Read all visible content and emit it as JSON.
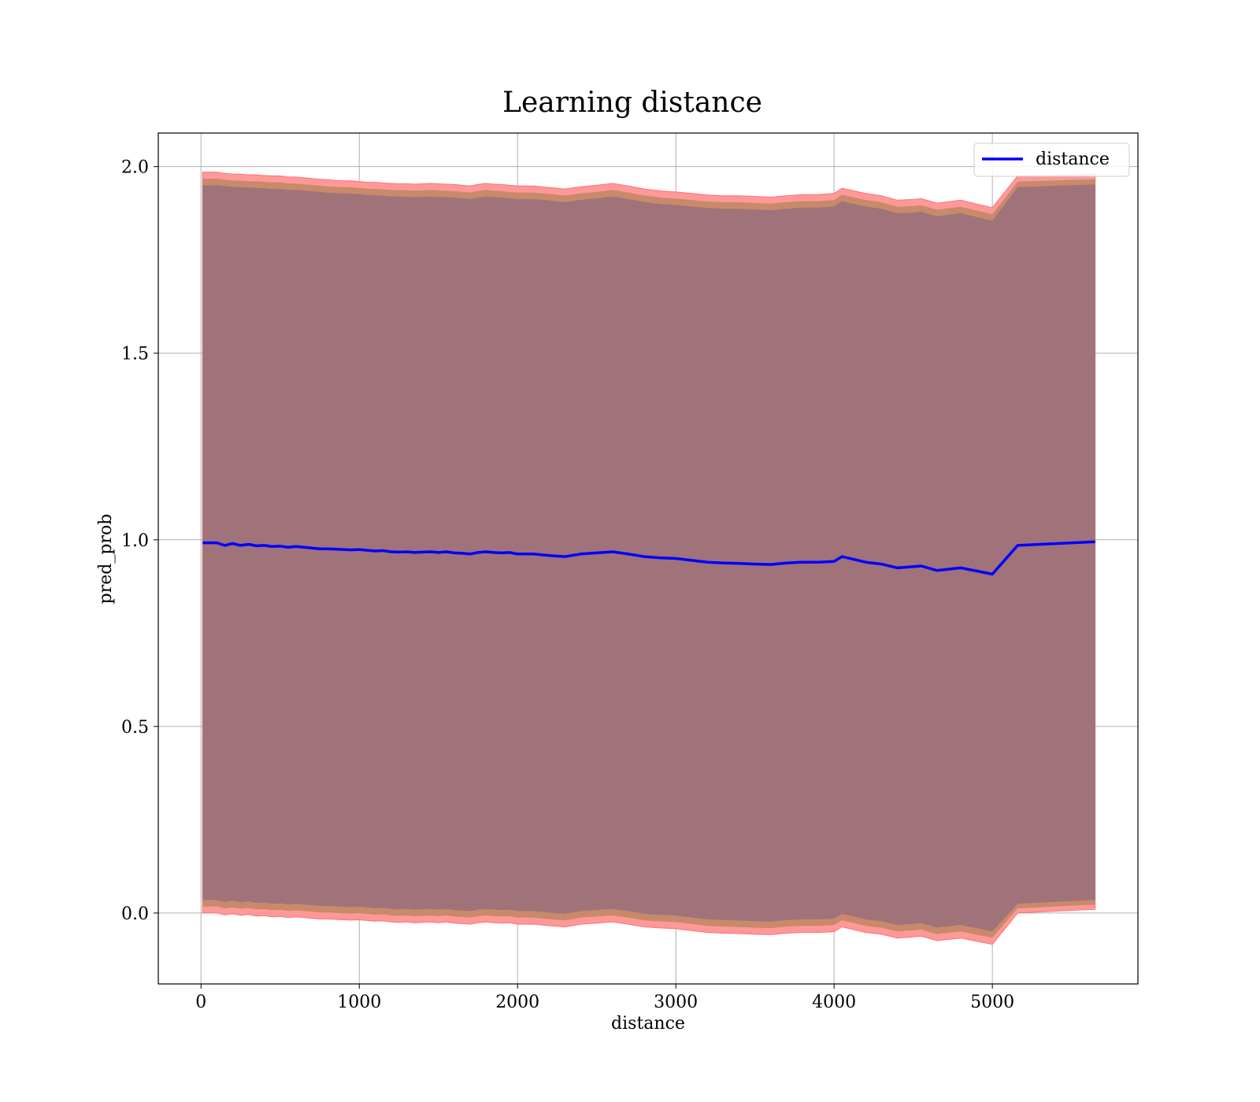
{
  "chart_data": {
    "type": "line",
    "title": "Learning distance",
    "xlabel": "distance",
    "ylabel": "pred_prob",
    "xlim": [
      -270,
      5920
    ],
    "ylim": [
      -0.19,
      2.09
    ],
    "x_ticks": [
      0,
      1000,
      2000,
      3000,
      4000,
      5000
    ],
    "x_tick_labels": [
      "0",
      "1000",
      "2000",
      "3000",
      "4000",
      "5000"
    ],
    "y_ticks": [
      0.0,
      0.5,
      1.0,
      1.5,
      2.0
    ],
    "y_tick_labels": [
      "0.0",
      "0.5",
      "1.0",
      "1.5",
      "2.0"
    ],
    "grid": true,
    "legend": {
      "position": "top-right",
      "entries": [
        {
          "label": "distance",
          "color": "#0000ff"
        }
      ]
    },
    "colors": {
      "line": "#0000ff",
      "band_outer": "#ff9999",
      "band_middle": "#c88a6a",
      "band_inner": "#a0727a",
      "grid": "#b0b0b0"
    },
    "series": [
      {
        "name": "distance",
        "x": [
          10,
          100,
          150,
          200,
          250,
          300,
          350,
          400,
          450,
          500,
          550,
          600,
          650,
          700,
          750,
          800,
          850,
          900,
          950,
          1000,
          1050,
          1100,
          1150,
          1200,
          1250,
          1300,
          1350,
          1400,
          1450,
          1500,
          1550,
          1600,
          1650,
          1700,
          1750,
          1800,
          1850,
          1900,
          1950,
          2000,
          2100,
          2200,
          2300,
          2400,
          2500,
          2600,
          2700,
          2800,
          2900,
          3000,
          3100,
          3200,
          3300,
          3400,
          3500,
          3600,
          3700,
          3800,
          3900,
          4000,
          4050,
          4200,
          4300,
          4400,
          4500,
          4550,
          4650,
          4800,
          5000,
          5160,
          5650
        ],
        "y": [
          0.992,
          0.992,
          0.985,
          0.99,
          0.985,
          0.988,
          0.984,
          0.985,
          0.982,
          0.983,
          0.98,
          0.982,
          0.98,
          0.978,
          0.976,
          0.976,
          0.975,
          0.974,
          0.973,
          0.974,
          0.972,
          0.97,
          0.971,
          0.968,
          0.967,
          0.968,
          0.966,
          0.967,
          0.968,
          0.966,
          0.968,
          0.965,
          0.964,
          0.962,
          0.966,
          0.968,
          0.966,
          0.965,
          0.966,
          0.962,
          0.962,
          0.958,
          0.955,
          0.962,
          0.965,
          0.968,
          0.962,
          0.955,
          0.952,
          0.95,
          0.945,
          0.94,
          0.938,
          0.937,
          0.935,
          0.934,
          0.938,
          0.94,
          0.94,
          0.942,
          0.955,
          0.94,
          0.935,
          0.925,
          0.928,
          0.93,
          0.918,
          0.925,
          0.908,
          0.985,
          0.995
        ],
        "upper_outer": [
          1.985,
          1.985,
          1.982,
          1.98,
          1.98,
          1.978,
          1.978,
          1.976,
          1.975,
          1.975,
          1.972,
          1.972,
          1.97,
          1.968,
          1.966,
          1.965,
          1.963,
          1.962,
          1.962,
          1.96,
          1.958,
          1.958,
          1.956,
          1.955,
          1.954,
          1.954,
          1.953,
          1.954,
          1.955,
          1.954,
          1.953,
          1.952,
          1.95,
          1.948,
          1.952,
          1.955,
          1.953,
          1.952,
          1.95,
          1.948,
          1.948,
          1.944,
          1.94,
          1.946,
          1.95,
          1.955,
          1.948,
          1.94,
          1.935,
          1.932,
          1.928,
          1.924,
          1.922,
          1.922,
          1.92,
          1.918,
          1.922,
          1.925,
          1.925,
          1.928,
          1.942,
          1.928,
          1.922,
          1.91,
          1.912,
          1.914,
          1.902,
          1.91,
          1.89,
          1.975,
          1.98
        ],
        "lower_outer": [
          0.0,
          0.0,
          -0.005,
          -0.002,
          -0.006,
          -0.004,
          -0.008,
          -0.007,
          -0.01,
          -0.009,
          -0.012,
          -0.01,
          -0.012,
          -0.014,
          -0.016,
          -0.016,
          -0.017,
          -0.018,
          -0.019,
          -0.018,
          -0.02,
          -0.022,
          -0.021,
          -0.024,
          -0.025,
          -0.024,
          -0.026,
          -0.025,
          -0.024,
          -0.026,
          -0.024,
          -0.027,
          -0.028,
          -0.03,
          -0.026,
          -0.024,
          -0.026,
          -0.027,
          -0.026,
          -0.03,
          -0.03,
          -0.034,
          -0.037,
          -0.03,
          -0.027,
          -0.024,
          -0.03,
          -0.037,
          -0.04,
          -0.042,
          -0.047,
          -0.052,
          -0.054,
          -0.055,
          -0.057,
          -0.058,
          -0.054,
          -0.052,
          -0.052,
          -0.05,
          -0.037,
          -0.052,
          -0.057,
          -0.067,
          -0.064,
          -0.062,
          -0.074,
          -0.067,
          -0.084,
          0.0,
          0.01
        ],
        "upper_inner": [
          1.95,
          1.95,
          1.948,
          1.946,
          1.945,
          1.944,
          1.943,
          1.942,
          1.94,
          1.94,
          1.938,
          1.937,
          1.936,
          1.934,
          1.932,
          1.93,
          1.929,
          1.928,
          1.927,
          1.926,
          1.924,
          1.923,
          1.922,
          1.92,
          1.92,
          1.919,
          1.918,
          1.919,
          1.92,
          1.919,
          1.918,
          1.917,
          1.915,
          1.913,
          1.917,
          1.92,
          1.918,
          1.917,
          1.915,
          1.913,
          1.913,
          1.909,
          1.905,
          1.911,
          1.915,
          1.92,
          1.913,
          1.905,
          1.9,
          1.897,
          1.893,
          1.889,
          1.887,
          1.887,
          1.885,
          1.883,
          1.887,
          1.89,
          1.89,
          1.893,
          1.907,
          1.893,
          1.887,
          1.875,
          1.877,
          1.879,
          1.867,
          1.875,
          1.855,
          1.945,
          1.952
        ],
        "lower_inner": [
          0.035,
          0.035,
          0.03,
          0.033,
          0.029,
          0.031,
          0.027,
          0.028,
          0.025,
          0.026,
          0.023,
          0.025,
          0.023,
          0.021,
          0.019,
          0.019,
          0.018,
          0.017,
          0.016,
          0.017,
          0.015,
          0.013,
          0.014,
          0.011,
          0.01,
          0.011,
          0.009,
          0.01,
          0.011,
          0.009,
          0.011,
          0.008,
          0.007,
          0.005,
          0.009,
          0.011,
          0.009,
          0.008,
          0.009,
          0.005,
          0.005,
          0.001,
          -0.002,
          0.005,
          0.008,
          0.011,
          0.005,
          -0.002,
          -0.005,
          -0.007,
          -0.012,
          -0.017,
          -0.019,
          -0.02,
          -0.022,
          -0.023,
          -0.019,
          -0.017,
          -0.017,
          -0.015,
          -0.002,
          -0.017,
          -0.022,
          -0.032,
          -0.029,
          -0.027,
          -0.039,
          -0.032,
          -0.049,
          0.025,
          0.035
        ]
      }
    ]
  }
}
